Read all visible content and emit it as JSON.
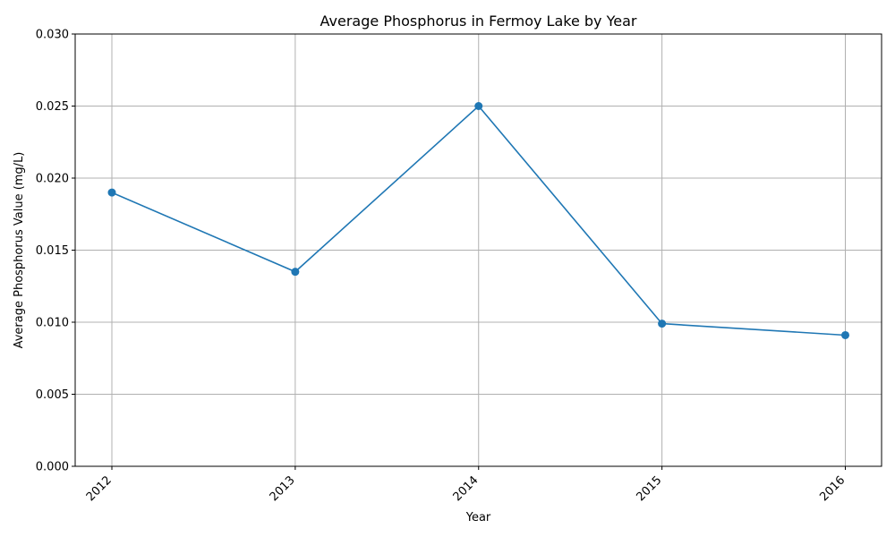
{
  "chart_data": {
    "type": "line",
    "title": "Average Phosphorus in Fermoy Lake by Year",
    "xlabel": "Year",
    "ylabel": "Average Phosphorus Value (mg/L)",
    "categories": [
      "2012",
      "2013",
      "2014",
      "2015",
      "2016"
    ],
    "series": [
      {
        "values": [
          0.019,
          0.0135,
          0.025,
          0.0099,
          0.0091
        ]
      }
    ],
    "ylim": [
      0,
      0.03
    ],
    "yticks": [
      "0.000",
      "0.005",
      "0.010",
      "0.015",
      "0.020",
      "0.025",
      "0.030"
    ],
    "grid": true,
    "legend": "none",
    "color": "#1f77b4"
  }
}
